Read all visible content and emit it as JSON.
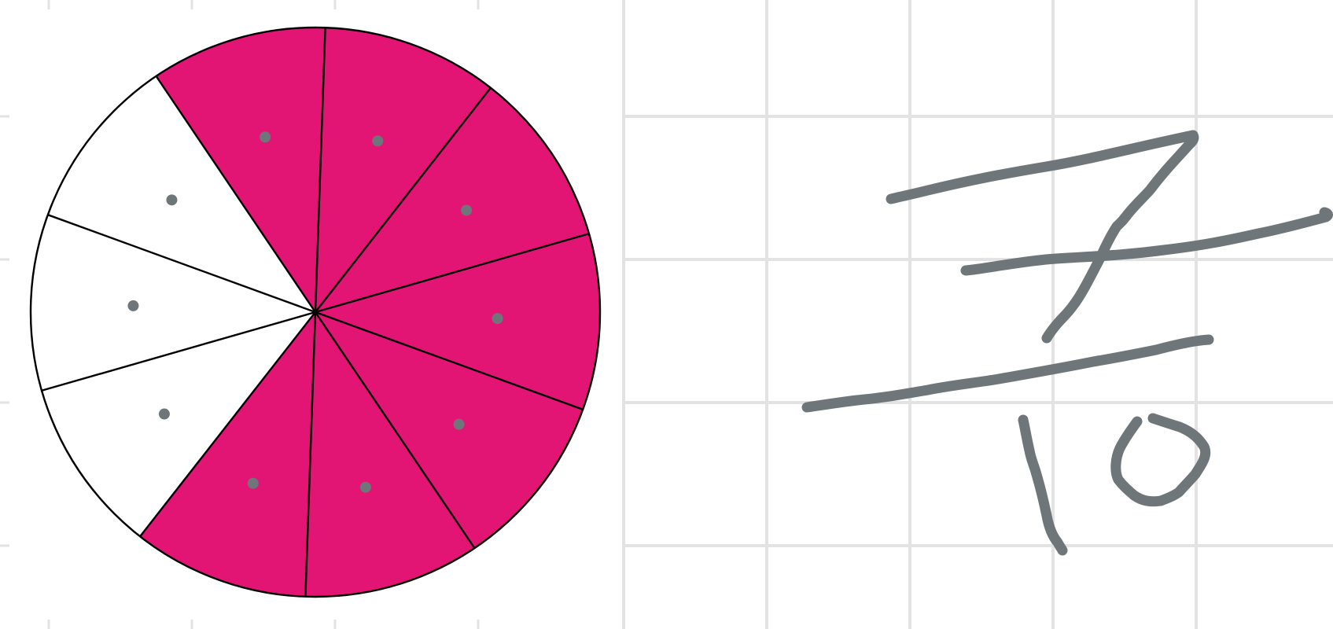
{
  "fraction_model": {
    "total_parts": 10,
    "shaded_parts": 7,
    "shaded_color": "#e31574",
    "unshaded_color": "#ffffff",
    "outline_color": "#000000",
    "marker_color": "#6f767a",
    "sectors": [
      {
        "shaded": true
      },
      {
        "shaded": true
      },
      {
        "shaded": true
      },
      {
        "shaded": true
      },
      {
        "shaded": true
      },
      {
        "shaded": true
      },
      {
        "shaded": false
      },
      {
        "shaded": false
      },
      {
        "shaded": false
      },
      {
        "shaded": true
      }
    ]
  },
  "handwriting": {
    "numerator": "7",
    "denominator": "10",
    "ink_color": "#6f767a"
  },
  "grid_color": "#e3e3e3"
}
